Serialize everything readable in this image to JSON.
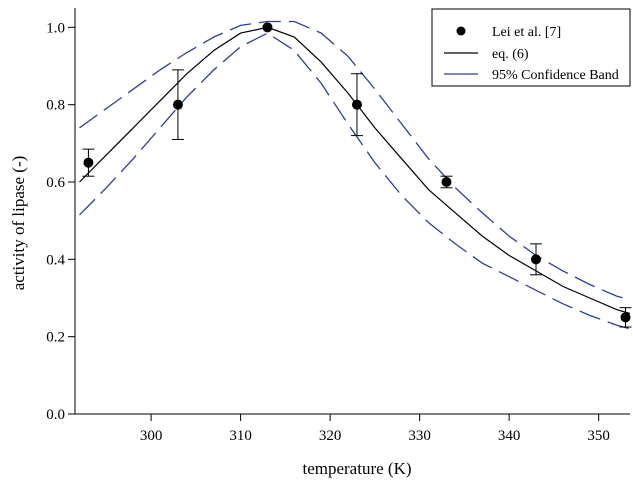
{
  "chart_data": {
    "type": "scatter",
    "title": "",
    "xlabel": "temperature (K)",
    "ylabel": "activity of lipase (-)",
    "xlim": [
      291.5,
      353.5
    ],
    "ylim": [
      0.0,
      1.05
    ],
    "xticks": [
      300,
      310,
      320,
      330,
      340,
      350
    ],
    "yticks": [
      0.0,
      0.2,
      0.4,
      0.6,
      0.8,
      1.0
    ],
    "xtick_labels": [
      "300",
      "310",
      "320",
      "330",
      "340",
      "350"
    ],
    "ytick_labels": [
      "0.0",
      "0.2",
      "0.4",
      "0.6",
      "0.8",
      "1.0"
    ],
    "grid": false,
    "legend_position": "top-right",
    "series": [
      {
        "name": "Lei et al. [7]",
        "kind": "points-with-error-bars",
        "color": "#000000",
        "x": [
          293,
          303,
          313,
          323,
          333,
          343,
          353
        ],
        "y": [
          0.65,
          0.8,
          1.0,
          0.8,
          0.6,
          0.4,
          0.25
        ],
        "yerr": [
          0.035,
          0.09,
          0.0,
          0.08,
          0.015,
          0.04,
          0.025
        ]
      },
      {
        "name": "eq. (6)",
        "kind": "line",
        "color": "#000000",
        "x": [
          292,
          295,
          298,
          301,
          304,
          307,
          310,
          313,
          316,
          319,
          322,
          325,
          328,
          331,
          334,
          337,
          340,
          343,
          346,
          349,
          352,
          353.5
        ],
        "y": [
          0.6,
          0.67,
          0.74,
          0.81,
          0.88,
          0.94,
          0.985,
          1.0,
          0.975,
          0.91,
          0.83,
          0.74,
          0.66,
          0.58,
          0.52,
          0.46,
          0.41,
          0.37,
          0.33,
          0.3,
          0.27,
          0.26
        ]
      },
      {
        "name": "95% Confidence Band",
        "kind": "dashed-band",
        "color": "#2E3E94",
        "x": [
          292,
          295,
          298,
          301,
          304,
          307,
          310,
          313,
          316,
          319,
          322,
          325,
          328,
          331,
          334,
          337,
          340,
          343,
          346,
          349,
          352,
          353.5
        ],
        "upper": [
          0.74,
          0.79,
          0.84,
          0.89,
          0.935,
          0.975,
          1.005,
          1.015,
          1.015,
          0.985,
          0.925,
          0.84,
          0.75,
          0.66,
          0.585,
          0.52,
          0.46,
          0.41,
          0.37,
          0.335,
          0.305,
          0.295
        ],
        "lower": [
          0.515,
          0.585,
          0.66,
          0.74,
          0.82,
          0.89,
          0.95,
          0.985,
          0.94,
          0.855,
          0.75,
          0.65,
          0.565,
          0.495,
          0.44,
          0.39,
          0.355,
          0.32,
          0.285,
          0.255,
          0.23,
          0.22
        ]
      }
    ]
  }
}
